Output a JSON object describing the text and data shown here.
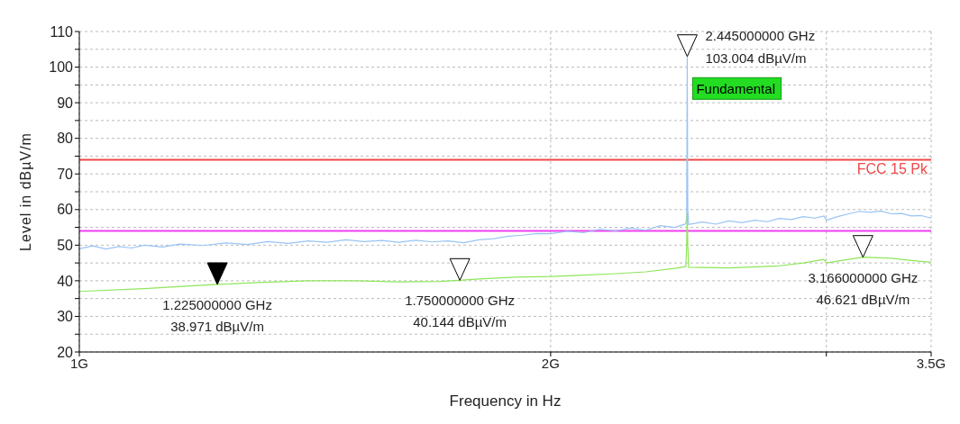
{
  "chart_data": {
    "type": "line",
    "xlabel": "Frequency in Hz",
    "ylabel": "Level in dBµV/m",
    "log": "x",
    "grid": true,
    "legend": false,
    "line_style": "solid",
    "marker": "none",
    "xlim": [
      1,
      3.5
    ],
    "xticks": [
      {
        "value": 1,
        "label": "1G"
      },
      {
        "value": 2,
        "label": "2G"
      },
      {
        "value": 3,
        "label": null
      },
      {
        "value": 3.5,
        "label": "3.5G"
      }
    ],
    "ylim": [
      20,
      110
    ],
    "yticks": [
      20,
      {
        "value": 25,
        "label": null
      },
      30,
      {
        "value": 35,
        "label": null
      },
      40,
      {
        "value": 45,
        "label": null
      },
      50,
      {
        "value": 55,
        "label": null
      },
      60,
      {
        "value": 65,
        "label": null
      },
      70,
      {
        "value": 75,
        "label": null
      },
      80,
      {
        "value": 85,
        "label": null
      },
      90,
      {
        "value": 95,
        "label": null
      },
      100,
      {
        "value": 105,
        "label": null
      },
      110
    ],
    "series": [
      {
        "color": "#99c4f4",
        "x": [
          1.0,
          1.02,
          1.04,
          1.06,
          1.08,
          1.1,
          1.13,
          1.16,
          1.2,
          1.24,
          1.28,
          1.32,
          1.36,
          1.4,
          1.44,
          1.48,
          1.52,
          1.56,
          1.6,
          1.64,
          1.68,
          1.72,
          1.76,
          1.8,
          1.84,
          1.88,
          1.92,
          1.96,
          2.0,
          2.05,
          2.1,
          2.15,
          2.2,
          2.25,
          2.3,
          2.35,
          2.4,
          2.44,
          2.443,
          2.445,
          2.447,
          2.45,
          2.5,
          2.55,
          2.6,
          2.65,
          2.7,
          2.75,
          2.8,
          2.85,
          2.9,
          2.95,
          2.99,
          3.0,
          3.05,
          3.1,
          3.15,
          3.2,
          3.25,
          3.3,
          3.35,
          3.4,
          3.45,
          3.5
        ],
        "values": [
          49,
          49.8,
          48.9,
          49.6,
          49.2,
          50,
          49.5,
          50.3,
          49.9,
          50.6,
          50.2,
          51,
          50.5,
          51.2,
          50.8,
          51.5,
          51,
          51.3,
          50.8,
          51.4,
          50.9,
          51.2,
          50.7,
          51.5,
          51.8,
          52.5,
          52.8,
          53.3,
          53.2,
          53.9,
          53.5,
          54.5,
          54,
          54.8,
          54.2,
          55.5,
          55,
          56,
          58,
          103.004,
          60,
          55.8,
          56.5,
          55.9,
          56.8,
          56.3,
          57,
          56.6,
          57.5,
          57.2,
          58,
          57.6,
          58.2,
          57,
          58,
          58.8,
          59.5,
          59.2,
          59.6,
          58.8,
          58.9,
          58.2,
          58.3,
          57.6
        ]
      },
      {
        "color": "#8ee65a",
        "x": [
          1.0,
          1.1,
          1.225,
          1.3,
          1.4,
          1.5,
          1.6,
          1.7,
          1.75,
          1.8,
          1.9,
          2.0,
          2.1,
          2.2,
          2.3,
          2.4,
          2.44,
          2.443,
          2.445,
          2.447,
          2.45,
          2.6,
          2.8,
          2.9,
          2.99,
          3.0,
          3.1,
          3.166,
          3.3,
          3.4,
          3.5
        ],
        "values": [
          37,
          37.8,
          38.971,
          39.5,
          40,
          40,
          39.7,
          39.8,
          40.144,
          40.5,
          41,
          41.2,
          41.6,
          42,
          42.5,
          43.5,
          44,
          50,
          59,
          50,
          43.8,
          43.6,
          44.2,
          45,
          46,
          45,
          46,
          46.621,
          46.3,
          45.7,
          45.2
        ]
      }
    ],
    "ref_lines": [
      {
        "axis": "y",
        "value": 74,
        "label": "FCC 15 Pk",
        "color": "#f04848",
        "line_style": "solid"
      },
      {
        "axis": "y",
        "value": 54,
        "label": null,
        "color": "#f040f0",
        "line_style": "solid"
      }
    ],
    "annotations": [
      {
        "text": "1.225000000 GHz",
        "x": 1.225,
        "y": 38.971
      },
      {
        "text": "38.971 dBµV/m",
        "x": 1.225,
        "y": 38.971
      },
      {
        "text": "1.750000000 GHz",
        "x": 1.75,
        "y": 40.144
      },
      {
        "text": "40.144 dBµV/m",
        "x": 1.75,
        "y": 40.144
      },
      {
        "text": "2.445000000 GHz",
        "x": 2.445,
        "y": 103.004
      },
      {
        "text": "103.004 dBµV/m",
        "x": 2.445,
        "y": 103.004
      },
      {
        "text": "3.166000000 GHz",
        "x": 3.166,
        "y": 46.621
      },
      {
        "text": "46.621 dBµV/m",
        "x": 3.166,
        "y": 46.621
      },
      {
        "text": "Fundamental",
        "x": 2.445,
        "y": 94
      }
    ]
  }
}
